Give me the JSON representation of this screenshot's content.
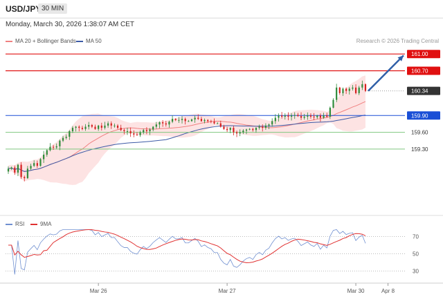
{
  "header": {
    "symbol": "USD/JPY",
    "timeframe": "30 MIN",
    "datetime": "Monday, March 30, 2026 1:38:07 AM CET",
    "credit": "Research © 2026 Trading Central"
  },
  "colors": {
    "bull": "#2e8b3a",
    "bear": "#d62020",
    "ma20": "#f08080",
    "band": "#fde0e0",
    "ma50": "#3c5aa6",
    "resistance": "#e01010",
    "support_green": "#7fc77f",
    "pivot": "#1a4fd6",
    "current": "#333333",
    "arrow": "#2f5fa8",
    "rsi": "#6f8fd0",
    "rsi_ma": "#e03030"
  },
  "chart_data": [
    {
      "type": "candlestick",
      "title": "",
      "legend": [
        {
          "name": "MA 20 + Bollinger Bands",
          "color": "#f08080"
        },
        {
          "name": "MA 50",
          "color": "#3c5aa6"
        }
      ],
      "ylim": [
        158.2,
        161.2
      ],
      "levels": [
        {
          "label": "161.00",
          "value": 161.0,
          "kind": "resistance"
        },
        {
          "label": "160.70",
          "value": 160.7,
          "kind": "resistance"
        },
        {
          "label": "160.34",
          "value": 160.34,
          "kind": "current"
        },
        {
          "label": "159.90",
          "value": 159.9,
          "kind": "pivot"
        },
        {
          "label": "159.60",
          "value": 159.6,
          "kind": "support"
        },
        {
          "label": "159.30",
          "value": 159.3,
          "kind": "support"
        }
      ],
      "x_ticks": [
        {
          "label": "Mar 26",
          "index": 28
        },
        {
          "label": "Mar 27",
          "index": 68
        },
        {
          "label": "Mar 30",
          "index": 108
        },
        {
          "label": "Apr 8",
          "index": 118
        }
      ],
      "series": {
        "close": [
          158.95,
          158.97,
          158.88,
          159.02,
          158.8,
          158.78,
          158.95,
          159.0,
          159.05,
          159.0,
          159.12,
          159.2,
          159.28,
          159.34,
          159.33,
          159.35,
          159.45,
          159.5,
          159.52,
          159.62,
          159.68,
          159.7,
          159.68,
          159.66,
          159.7,
          159.73,
          159.7,
          159.66,
          159.72,
          159.68,
          159.72,
          159.76,
          159.72,
          159.72,
          159.68,
          159.64,
          159.62,
          159.62,
          159.58,
          159.56,
          159.55,
          159.6,
          159.64,
          159.62,
          159.65,
          159.7,
          159.74,
          159.78,
          159.76,
          159.74,
          159.79,
          159.84,
          159.82,
          159.82,
          159.84,
          159.8,
          159.8,
          159.83,
          159.86,
          159.84,
          159.8,
          159.82,
          159.8,
          159.79,
          159.76,
          159.76,
          159.7,
          159.66,
          159.64,
          159.68,
          159.6,
          159.58,
          159.6,
          159.63,
          159.65,
          159.66,
          159.64,
          159.68,
          159.7,
          159.68,
          159.72,
          159.74,
          159.8,
          159.86,
          159.9,
          159.88,
          159.9,
          159.88,
          159.9,
          159.91,
          159.89,
          159.86,
          159.88,
          159.9,
          159.88,
          159.87,
          159.9,
          159.86,
          159.9,
          159.88,
          160.04,
          160.18,
          160.4,
          160.3,
          160.38,
          160.34,
          160.38,
          160.4,
          160.3,
          160.4,
          160.46,
          160.34
        ],
        "ma20_band_upper_note": "MA20 with Bollinger Bands drawn as shaded envelope",
        "rsi": {
          "name": "RSI",
          "ma_name": "9MA",
          "ticks": [
            70,
            50,
            30
          ],
          "ylim": [
            20,
            80
          ]
        }
      }
    }
  ]
}
